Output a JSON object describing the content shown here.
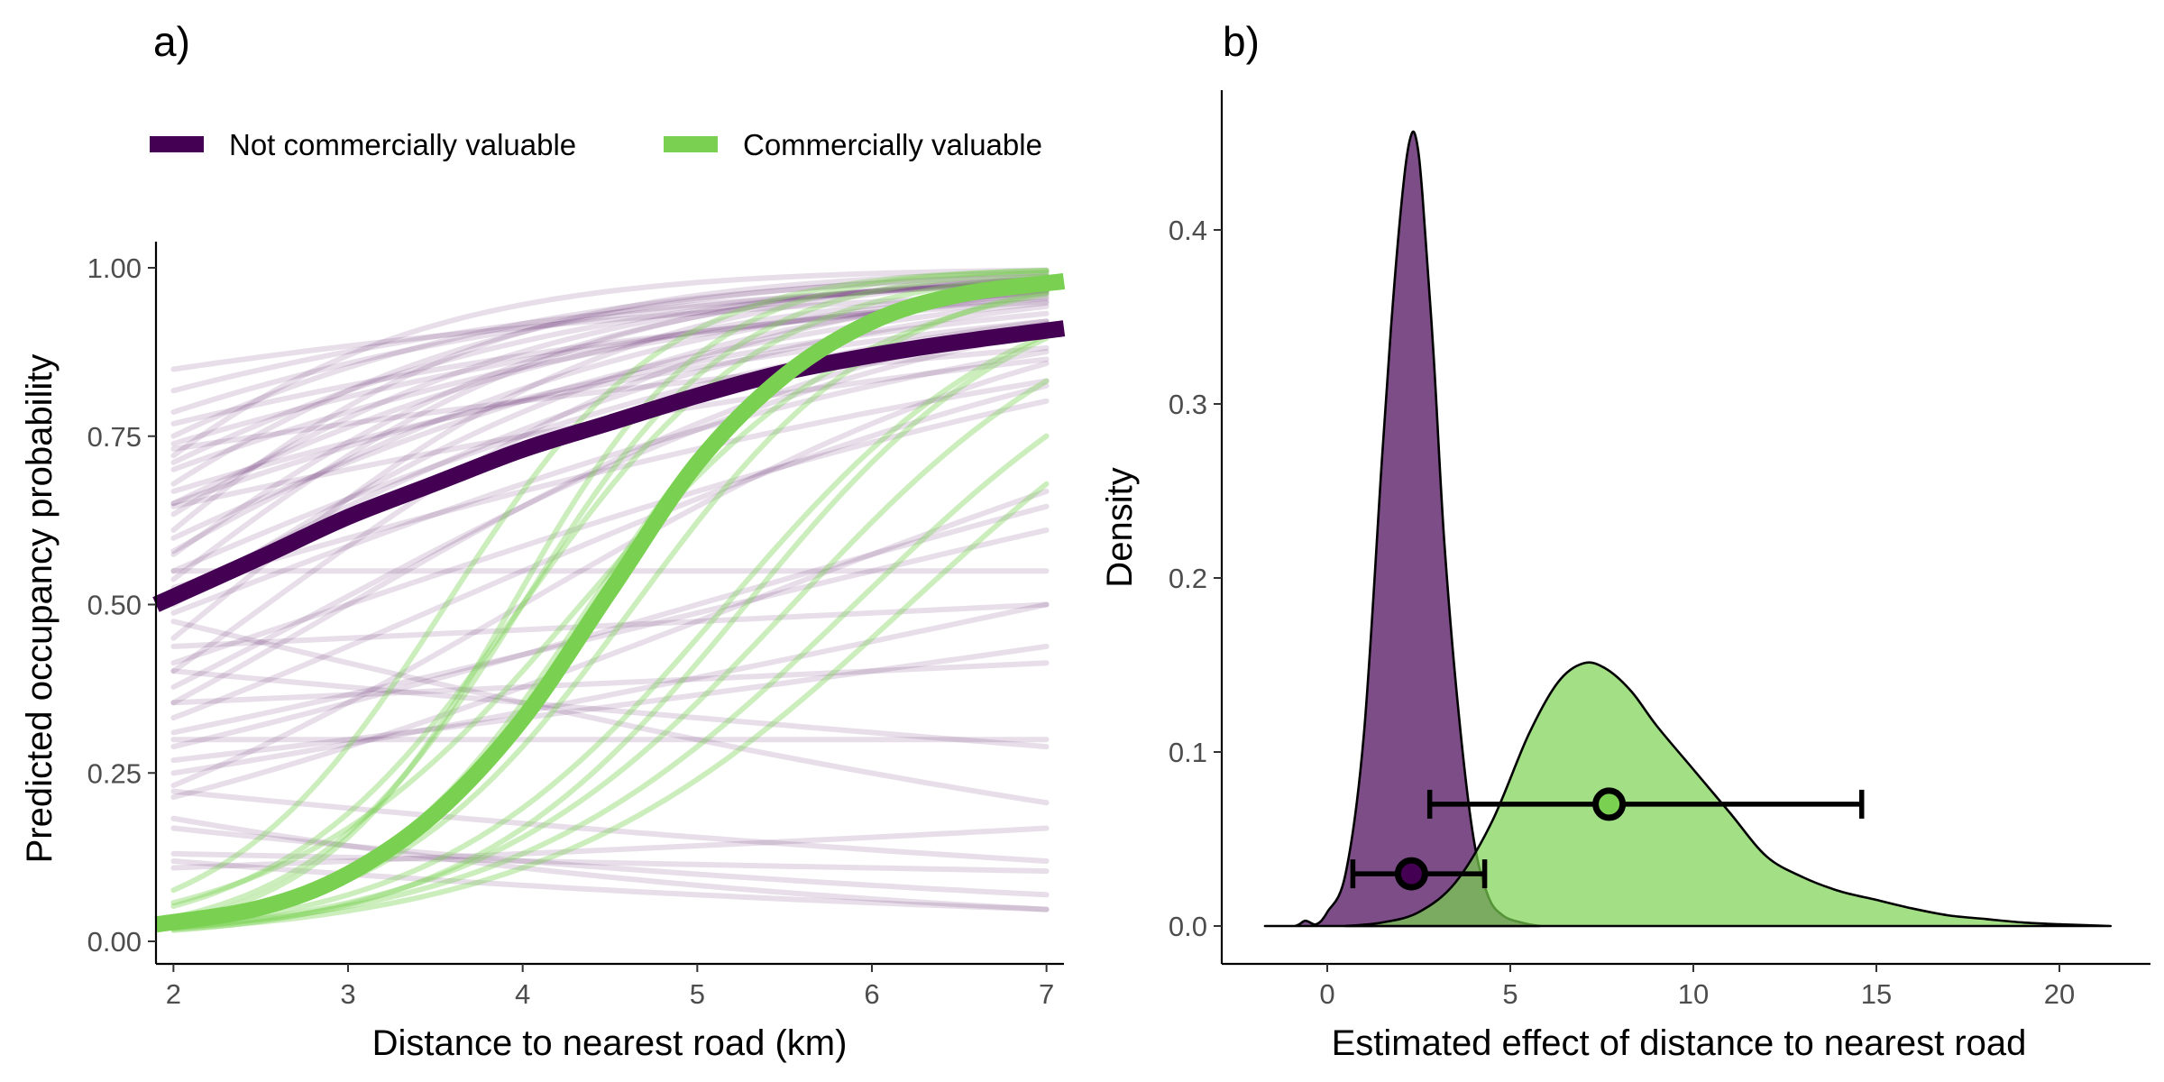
{
  "chart_data": [
    {
      "panel": "a)",
      "type": "line",
      "xlabel": "Distance to nearest road (km)",
      "ylabel": "Predicted occupancy probability",
      "xlim": [
        1.9,
        7.1
      ],
      "ylim": [
        0,
        1
      ],
      "x_ticks": [
        "2",
        "3",
        "4",
        "5",
        "6",
        "7"
      ],
      "y_ticks": [
        "0.00",
        "0.25",
        "0.50",
        "0.75",
        "1.00"
      ],
      "grid": false,
      "legend_position": "top-left",
      "legend": [
        {
          "name": "Not commercially valuable",
          "color": "#440154"
        },
        {
          "name": "Commercially valuable",
          "color": "#7ad151"
        }
      ],
      "series": [
        {
          "name": "Not commercially valuable",
          "color": "#440154",
          "role": "mean",
          "x": [
            1.9,
            2.5,
            3.0,
            3.5,
            4.0,
            4.5,
            5.0,
            5.5,
            6.0,
            6.5,
            7.1
          ],
          "values": [
            0.5,
            0.57,
            0.63,
            0.68,
            0.73,
            0.77,
            0.81,
            0.845,
            0.87,
            0.89,
            0.91
          ]
        },
        {
          "name": "Commercially valuable",
          "color": "#7ad151",
          "role": "mean",
          "x": [
            1.9,
            2.5,
            3.0,
            3.5,
            4.0,
            4.5,
            5.0,
            5.5,
            6.0,
            6.5,
            7.1
          ],
          "values": [
            0.025,
            0.05,
            0.1,
            0.19,
            0.33,
            0.52,
            0.71,
            0.84,
            0.92,
            0.96,
            0.98
          ]
        }
      ],
      "posterior_draws": [
        {
          "group": "Not commercially valuable",
          "color": "#440154",
          "lines": [
            {
              "a": 1.73,
              "b": 0.3
            },
            {
              "a": 1.04,
              "b": 0.4
            },
            {
              "a": 0.62,
              "b": 0.4
            },
            {
              "a": 0.62,
              "b": 0.55
            },
            {
              "a": 0.85,
              "b": 0.45
            },
            {
              "a": 0.32,
              "b": 0.6
            },
            {
              "a": 0.2,
              "b": 0.45
            },
            {
              "a": 1.2,
              "b": 0.35
            },
            {
              "a": 0.55,
              "b": 0.7
            },
            {
              "a": 0.9,
              "b": 0.6
            },
            {
              "a": 0.15,
              "b": 0.8
            },
            {
              "a": 0.75,
              "b": 0.75
            },
            {
              "a": -0.5,
              "b": 0.55
            },
            {
              "a": -0.4,
              "b": 0.75
            },
            {
              "a": -0.7,
              "b": 0.45
            },
            {
              "a": -1.2,
              "b": 0.6
            },
            {
              "a": -0.9,
              "b": 0.3
            },
            {
              "a": -1.0,
              "b": 0.15
            },
            {
              "a": -0.8,
              "b": 0.25
            },
            {
              "a": -1.1,
              "b": 0.22
            },
            {
              "a": 1.3,
              "b": 0.5
            },
            {
              "a": 0.4,
              "b": 0.5
            },
            {
              "a": 0.0,
              "b": 0.65
            },
            {
              "a": -0.2,
              "b": 0.85
            },
            {
              "a": 0.6,
              "b": 0.25
            },
            {
              "a": 1.0,
              "b": 0.2
            },
            {
              "a": 0.1,
              "b": 0.3
            },
            {
              "a": -0.35,
              "b": 0.35
            },
            {
              "a": -1.3,
              "b": 0.4
            },
            {
              "a": -0.4,
              "b": -0.1
            },
            {
              "a": -0.6,
              "b": 0.05
            },
            {
              "a": -0.85,
              "b": 0.0
            },
            {
              "a": -1.25,
              "b": -0.15
            },
            {
              "a": -1.5,
              "b": -0.3
            },
            {
              "a": -1.6,
              "b": -0.2
            },
            {
              "a": -1.9,
              "b": -0.05
            },
            {
              "a": -2.0,
              "b": -0.2
            },
            {
              "a": -2.1,
              "b": 0.1
            },
            {
              "a": -0.1,
              "b": -0.25
            },
            {
              "a": 0.2,
              "b": 0.0
            },
            {
              "a": -0.25,
              "b": 0.05
            },
            {
              "a": 1.5,
              "b": 0.45
            },
            {
              "a": 0.95,
              "b": 0.95
            },
            {
              "a": 0.45,
              "b": 0.9
            },
            {
              "a": -0.05,
              "b": 0.4
            },
            {
              "a": 0.7,
              "b": 0.35
            },
            {
              "a": 1.1,
              "b": 0.65
            },
            {
              "a": 0.3,
              "b": 0.75
            },
            {
              "a": -0.6,
              "b": 0.6
            },
            {
              "a": 0.05,
              "b": 0.55
            }
          ]
        },
        {
          "group": "Commercially valuable",
          "color": "#7ad151",
          "lines": [
            {
              "a": -2.5,
              "b": 1.6
            },
            {
              "a": -3.5,
              "b": 1.8
            },
            {
              "a": -2.8,
              "b": 1.2
            },
            {
              "a": -3.7,
              "b": 1.4
            },
            {
              "a": -3.8,
              "b": 1.2
            },
            {
              "a": -4.0,
              "b": 0.95
            },
            {
              "a": -3.9,
              "b": 1.1
            },
            {
              "a": -3.7,
              "b": 1.55
            },
            {
              "a": -4.1,
              "b": 1.25
            },
            {
              "a": -3.9,
              "b": 1.0
            },
            {
              "a": -2.9,
              "b": 1.45
            },
            {
              "a": -3.3,
              "b": 1.65
            }
          ]
        }
      ]
    },
    {
      "panel": "b)",
      "type": "area",
      "xlabel": "Estimated effect of distance to nearest road",
      "ylabel": "Density",
      "xlim": [
        -2.7,
        22.3
      ],
      "ylim": [
        -0.008,
        0.46
      ],
      "x_ticks": [
        "0",
        "5",
        "10",
        "15",
        "20"
      ],
      "y_ticks": [
        "0.0",
        "0.1",
        "0.2",
        "0.3",
        "0.4"
      ],
      "grid": false,
      "series": [
        {
          "name": "Not commercially valuable",
          "color": "#440154",
          "x": [
            -1.7,
            -0.9,
            -0.6,
            -0.3,
            0.0,
            0.5,
            1.0,
            1.5,
            1.8,
            2.1,
            2.3,
            2.45,
            2.6,
            2.9,
            3.2,
            3.6,
            4.0,
            4.4,
            4.8,
            5.3,
            5.8
          ],
          "values": [
            0.0,
            0.0,
            0.003,
            0.001,
            0.008,
            0.03,
            0.11,
            0.27,
            0.36,
            0.43,
            0.455,
            0.45,
            0.42,
            0.33,
            0.22,
            0.12,
            0.05,
            0.017,
            0.006,
            0.002,
            0.0
          ]
        },
        {
          "name": "Commercially valuable",
          "color": "#7ad151",
          "x": [
            0.5,
            1.5,
            2.5,
            3.5,
            4.5,
            5.5,
            6.3,
            7.0,
            7.6,
            8.3,
            9.0,
            10.0,
            11.0,
            12.0,
            13.0,
            14.0,
            15.0,
            16.0,
            17.0,
            18.0,
            19.0,
            20.0,
            21.4
          ],
          "values": [
            0.0,
            0.002,
            0.008,
            0.025,
            0.06,
            0.11,
            0.14,
            0.151,
            0.148,
            0.135,
            0.115,
            0.09,
            0.065,
            0.04,
            0.028,
            0.02,
            0.015,
            0.01,
            0.006,
            0.004,
            0.002,
            0.001,
            0.0
          ]
        }
      ],
      "intervals": [
        {
          "name": "Not commercially valuable",
          "color": "#440154",
          "point": 2.3,
          "y": 0.03,
          "low": 0.7,
          "high": 4.3
        },
        {
          "name": "Commercially valuable",
          "color": "#7ad151",
          "point": 7.7,
          "y": 0.07,
          "low": 2.8,
          "high": 14.6
        }
      ]
    }
  ]
}
